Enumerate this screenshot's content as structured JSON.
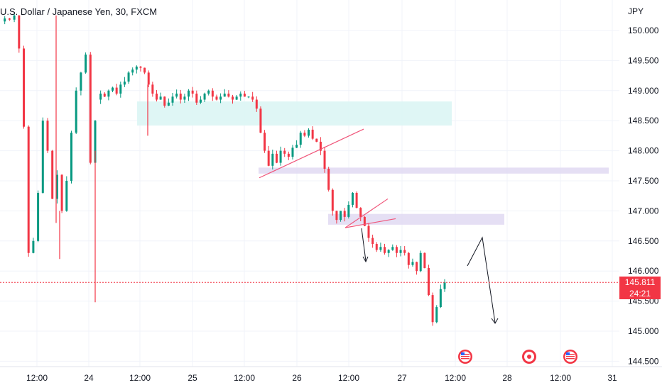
{
  "header": {
    "title": "U.S. Dollar / Japanese Yen, 30, FXCM"
  },
  "currency_label": "JPY",
  "last_price": {
    "value": "145.811",
    "countdown": "24:21",
    "color": "#f23645"
  },
  "colors": {
    "up": "#089981",
    "down": "#f23645",
    "grid": "#f0f3fa",
    "zone_teal": "#d9f5f3",
    "zone_purple": "#e1d9f2",
    "trendline": "#f0567a",
    "projection": "#131722"
  },
  "chart_data": {
    "type": "candlestick",
    "title": "U.S. Dollar / Japanese Yen, 30, FXCM",
    "ylabel": "JPY",
    "ylim": [
      144.45,
      150.25
    ],
    "y_ticks": [
      "150.000",
      "149.500",
      "149.000",
      "148.500",
      "148.000",
      "147.500",
      "147.000",
      "146.500",
      "146.000",
      "145.500",
      "145.000",
      "144.500"
    ],
    "x_ticks": [
      "12:00",
      "24",
      "12:00",
      "25",
      "12:00",
      "26",
      "12:00",
      "27",
      "12:00",
      "28",
      "12:00",
      "31"
    ],
    "legend": "none",
    "grid": true,
    "series": [
      {
        "segment": "early",
        "close": [
          150.15,
          150.2,
          150.18,
          150.25,
          149.7,
          148.4,
          146.3,
          146.5,
          147.3,
          148.5,
          148.0,
          147.2,
          147.6,
          147.0,
          147.5,
          148.3,
          149.0,
          149.3,
          149.6,
          147.8,
          148.5
        ]
      },
      {
        "segment": "main",
        "close": [
          148.85,
          148.95,
          148.9,
          149.0,
          149.05,
          148.95,
          149.1,
          149.15,
          149.3,
          149.35,
          149.4,
          149.38,
          149.3,
          149.1,
          148.95,
          148.85,
          148.9,
          148.75,
          148.8,
          148.9,
          148.95,
          148.85,
          148.9,
          149.0,
          148.95,
          148.8,
          148.85,
          148.95,
          149.0,
          148.9,
          148.85,
          148.9,
          148.95,
          148.9,
          148.85,
          148.9,
          148.95,
          148.9,
          148.9,
          148.85,
          148.7,
          148.3,
          148.0,
          147.75,
          147.95,
          147.8,
          148.0,
          147.95,
          147.9,
          148.05,
          148.1,
          148.3,
          148.25,
          148.35,
          148.2,
          148.15,
          148.0,
          147.7,
          147.35,
          147.0,
          146.85,
          147.0,
          146.9,
          147.1,
          147.3,
          147.05,
          146.9,
          146.75,
          146.55,
          146.45,
          146.35,
          146.4,
          146.3,
          146.35,
          146.4,
          146.3,
          146.35,
          146.3,
          146.1,
          146.15,
          146.0,
          146.3,
          146.05,
          145.6,
          145.15,
          145.4,
          145.7,
          145.81
        ]
      }
    ],
    "zones": [
      {
        "color": "teal",
        "y_high": 148.82,
        "y_low": 148.42
      },
      {
        "color": "purple",
        "y_high": 147.72,
        "y_low": 147.62
      },
      {
        "color": "purple",
        "y_high": 146.95,
        "y_low": 146.77
      }
    ],
    "last_price": 145.811
  }
}
